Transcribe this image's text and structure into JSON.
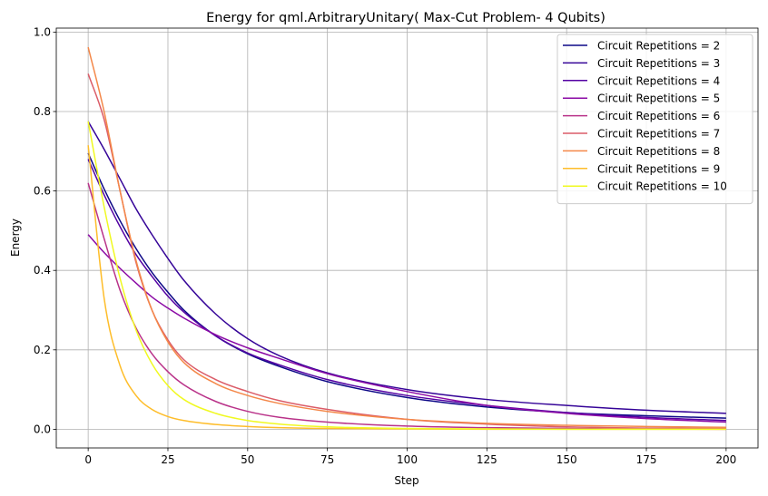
{
  "chart_data": {
    "type": "line",
    "title": "Energy for qml.ArbitraryUnitary( Max-Cut Problem- 4 Qubits)",
    "xlabel": "Step",
    "ylabel": "Energy",
    "xlim": [
      -10,
      210
    ],
    "ylim": [
      -0.047,
      1.01
    ],
    "xticks": [
      0,
      25,
      50,
      75,
      100,
      125,
      150,
      175,
      200
    ],
    "yticks": [
      0.0,
      0.2,
      0.4,
      0.6,
      0.8,
      1.0
    ],
    "grid": true,
    "legend_position": "top-right",
    "x": [
      0,
      5,
      10,
      15,
      20,
      25,
      30,
      40,
      50,
      60,
      75,
      100,
      125,
      150,
      175,
      200
    ],
    "series": [
      {
        "name": "Circuit Repetitions = 2",
        "color": "#0d0887",
        "values": [
          0.695,
          0.605,
          0.525,
          0.455,
          0.395,
          0.345,
          0.3,
          0.235,
          0.19,
          0.158,
          0.12,
          0.08,
          0.056,
          0.042,
          0.034,
          0.028
        ]
      },
      {
        "name": "Circuit Repetitions = 3",
        "color": "#350498",
        "values": [
          0.775,
          0.705,
          0.63,
          0.555,
          0.49,
          0.43,
          0.375,
          0.29,
          0.228,
          0.185,
          0.142,
          0.1,
          0.075,
          0.06,
          0.048,
          0.04
        ]
      },
      {
        "name": "Circuit Repetitions = 4",
        "color": "#5402a3",
        "values": [
          0.68,
          0.59,
          0.51,
          0.44,
          0.385,
          0.335,
          0.295,
          0.235,
          0.192,
          0.162,
          0.125,
          0.085,
          0.06,
          0.042,
          0.03,
          0.022
        ]
      },
      {
        "name": "Circuit Repetitions = 5",
        "color": "#8b0aa5",
        "values": [
          0.49,
          0.445,
          0.405,
          0.368,
          0.333,
          0.305,
          0.28,
          0.238,
          0.205,
          0.178,
          0.14,
          0.095,
          0.06,
          0.04,
          0.027,
          0.018
        ]
      },
      {
        "name": "Circuit Repetitions = 6",
        "color": "#b93289",
        "values": [
          0.62,
          0.48,
          0.35,
          0.255,
          0.19,
          0.145,
          0.112,
          0.07,
          0.045,
          0.03,
          0.018,
          0.008,
          0.004,
          0.002,
          0.001,
          0.0
        ]
      },
      {
        "name": "Circuit Repetitions = 7",
        "color": "#db5c68",
        "values": [
          0.895,
          0.78,
          0.6,
          0.42,
          0.3,
          0.225,
          0.175,
          0.125,
          0.095,
          0.072,
          0.05,
          0.025,
          0.013,
          0.006,
          0.003,
          0.002
        ]
      },
      {
        "name": "Circuit Repetitions = 8",
        "color": "#f48849",
        "values": [
          0.962,
          0.8,
          0.6,
          0.425,
          0.3,
          0.22,
          0.168,
          0.115,
          0.085,
          0.065,
          0.045,
          0.025,
          0.015,
          0.01,
          0.007,
          0.005
        ]
      },
      {
        "name": "Circuit Repetitions = 9",
        "color": "#febd2a",
        "values": [
          0.715,
          0.33,
          0.16,
          0.085,
          0.05,
          0.032,
          0.022,
          0.012,
          0.007,
          0.004,
          0.002,
          0.001,
          0.0,
          0.0,
          0.0,
          0.0
        ]
      },
      {
        "name": "Circuit Repetitions = 10",
        "color": "#f0f921",
        "values": [
          0.775,
          0.56,
          0.38,
          0.25,
          0.165,
          0.11,
          0.075,
          0.04,
          0.022,
          0.013,
          0.006,
          0.002,
          0.001,
          0.0,
          0.0,
          0.0
        ]
      }
    ]
  }
}
